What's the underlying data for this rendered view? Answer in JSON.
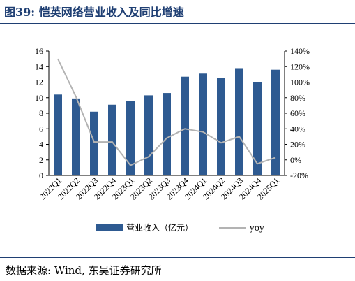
{
  "header": {
    "title": "图39:  恺英网络营业收入及同比增速"
  },
  "footer": {
    "source": "数据来源:  Wind,  东吴证券研究所"
  },
  "chart_data": {
    "type": "bar",
    "categories": [
      "2022Q1",
      "2022Q2",
      "2022Q3",
      "2022Q4",
      "2023Q1",
      "2023Q2",
      "2023Q3",
      "2023Q4",
      "2024Q1",
      "2024Q2",
      "2024Q3",
      "2024Q4",
      "2025Q1"
    ],
    "series": [
      {
        "name": "营业收入（亿元）",
        "type": "bar",
        "axis": "left",
        "color": "#2e5a91",
        "values": [
          10.4,
          9.9,
          8.2,
          9.1,
          9.6,
          10.3,
          10.6,
          12.7,
          13.1,
          12.5,
          13.8,
          12.0,
          13.6
        ]
      },
      {
        "name": "yoy",
        "type": "line",
        "axis": "right",
        "color": "#b3b3b3",
        "values": [
          130,
          81,
          23,
          23,
          -7,
          4,
          28,
          40,
          36,
          22,
          30,
          -5,
          3
        ]
      }
    ],
    "left_axis": {
      "min": 0,
      "max": 16,
      "step": 2,
      "tick_labels": [
        "0",
        "2",
        "4",
        "6",
        "8",
        "10",
        "12",
        "14",
        "16"
      ]
    },
    "right_axis": {
      "min": -20,
      "max": 140,
      "step": 20,
      "tick_labels": [
        "-20%",
        "0%",
        "20%",
        "40%",
        "60%",
        "80%",
        "100%",
        "120%",
        "140%"
      ]
    },
    "grid": false,
    "legend_position": "bottom"
  }
}
